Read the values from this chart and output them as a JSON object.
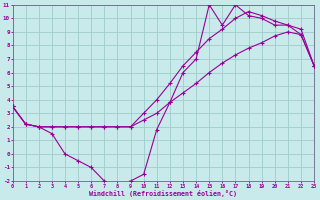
{
  "bg_color": "#c8eaea",
  "grid_color": "#a0cccc",
  "line_color": "#990099",
  "xlabel": "Windchill (Refroidissement éolien,°C)",
  "xlim": [
    0,
    23
  ],
  "ylim": [
    -2,
    11
  ],
  "xticks": [
    0,
    1,
    2,
    3,
    4,
    5,
    6,
    7,
    8,
    9,
    10,
    11,
    12,
    13,
    14,
    15,
    16,
    17,
    18,
    19,
    20,
    21,
    22,
    23
  ],
  "yticks": [
    -2,
    -1,
    0,
    1,
    2,
    3,
    4,
    5,
    6,
    7,
    8,
    9,
    10,
    11
  ],
  "curve1_x": [
    0,
    1,
    2,
    3,
    4,
    5,
    6,
    7,
    8,
    9,
    10,
    11,
    12,
    13,
    14,
    15,
    16,
    17,
    18,
    19,
    20,
    21,
    22,
    23
  ],
  "curve1_y": [
    3.5,
    2.2,
    2.0,
    2.0,
    2.0,
    2.0,
    2.0,
    2.0,
    2.0,
    2.0,
    2.5,
    3.0,
    3.8,
    4.5,
    5.2,
    6.0,
    6.7,
    7.3,
    7.8,
    8.2,
    8.7,
    9.0,
    8.8,
    6.5
  ],
  "curve2_x": [
    0,
    1,
    2,
    3,
    4,
    5,
    6,
    7,
    8,
    9,
    10,
    11,
    12,
    13,
    14,
    15,
    16,
    17,
    18,
    19,
    20,
    21,
    22,
    23
  ],
  "curve2_y": [
    3.5,
    2.2,
    2.0,
    1.5,
    0.0,
    -0.5,
    -1.0,
    -2.0,
    -2.2,
    -2.0,
    -1.5,
    1.8,
    3.8,
    6.0,
    7.0,
    11.0,
    9.5,
    11.0,
    10.2,
    10.0,
    9.5,
    9.5,
    8.8,
    6.5
  ],
  "curve3_x": [
    0,
    1,
    2,
    3,
    4,
    5,
    6,
    7,
    8,
    9,
    10,
    11,
    12,
    13,
    14,
    15,
    16,
    17,
    18,
    19,
    20,
    21,
    22,
    23
  ],
  "curve3_y": [
    3.5,
    2.2,
    2.0,
    2.0,
    2.0,
    2.0,
    2.0,
    2.0,
    2.0,
    2.0,
    3.0,
    4.0,
    5.2,
    6.5,
    7.5,
    8.5,
    9.2,
    10.0,
    10.5,
    10.2,
    9.8,
    9.5,
    9.2,
    6.5
  ]
}
